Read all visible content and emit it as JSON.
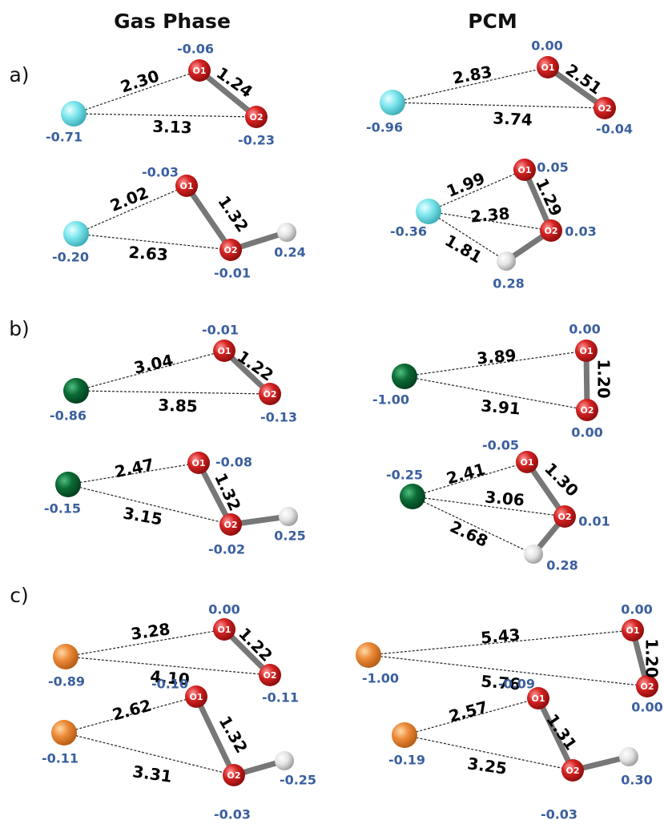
{
  "headers": [
    "Gas Phase",
    "PCM"
  ],
  "panels": [
    {
      "label": "a)",
      "structures": [
        {
          "atoms": [
            {
              "charge": "-0.71"
            },
            {
              "label": "O1",
              "charge": "-0.06"
            },
            {
              "label": "O2",
              "charge": "-0.23"
            }
          ],
          "distances": [
            "2.30",
            "3.13",
            "1.24"
          ]
        },
        {
          "atoms": [
            {
              "charge": "-0.96"
            },
            {
              "label": "O1",
              "charge": "0.00"
            },
            {
              "label": "O2",
              "charge": "-0.04"
            }
          ],
          "distances": [
            "2.83",
            "3.74",
            "2.51"
          ]
        },
        {
          "atoms": [
            {
              "charge": "-0.20"
            },
            {
              "label": "O1",
              "charge": "-0.03"
            },
            {
              "label": "O2",
              "charge": "-0.01"
            },
            {
              "charge": "0.24"
            }
          ],
          "distances": [
            "2.02",
            "2.63",
            "1.32"
          ]
        },
        {
          "atoms": [
            {
              "charge": "-0.36"
            },
            {
              "label": "O1",
              "charge": "0.05"
            },
            {
              "label": "O2",
              "charge": "0.03"
            },
            {
              "charge": "0.28"
            }
          ],
          "distances": [
            "1.99",
            "2.38",
            "1.81",
            "1.29"
          ]
        }
      ]
    },
    {
      "label": "b)",
      "structures": [
        {
          "atoms": [
            {
              "charge": "-0.86"
            },
            {
              "label": "O1",
              "charge": "-0.01"
            },
            {
              "label": "O2",
              "charge": "-0.13"
            }
          ],
          "distances": [
            "3.04",
            "3.85",
            "1.22"
          ]
        },
        {
          "atoms": [
            {
              "charge": "-1.00"
            },
            {
              "label": "O1",
              "charge": "0.00"
            },
            {
              "label": "O2",
              "charge": "0.00"
            }
          ],
          "distances": [
            "3.89",
            "3.91",
            "1.20"
          ]
        },
        {
          "atoms": [
            {
              "charge": "-0.15"
            },
            {
              "label": "O1",
              "charge": "-0.08"
            },
            {
              "label": "O2",
              "charge": "-0.02"
            },
            {
              "charge": "0.25"
            }
          ],
          "distances": [
            "2.47",
            "3.15",
            "1.32"
          ]
        },
        {
          "atoms": [
            {
              "charge": "-0.25"
            },
            {
              "label": "O1",
              "charge": "-0.05"
            },
            {
              "label": "O2",
              "charge": "0.01"
            },
            {
              "charge": "0.28"
            }
          ],
          "distances": [
            "2.41",
            "3.06",
            "2.68",
            "1.30"
          ]
        }
      ]
    },
    {
      "label": "c)",
      "structures": [
        {
          "atoms": [
            {
              "charge": "-0.89"
            },
            {
              "label": "O1",
              "charge": "0.00"
            },
            {
              "label": "O2",
              "charge": "-0.11"
            }
          ],
          "distances": [
            "3.28",
            "4.10",
            "1.22"
          ]
        },
        {
          "atoms": [
            {
              "charge": "-1.00"
            },
            {
              "label": "O1",
              "charge": "0.00"
            },
            {
              "label": "O2",
              "charge": "0.00"
            }
          ],
          "distances": [
            "5.43",
            "5.76",
            "1.20"
          ]
        },
        {
          "atoms": [
            {
              "charge": "-0.11"
            },
            {
              "label": "O1",
              "charge": "-0.10"
            },
            {
              "label": "O2",
              "charge": "-0.03"
            },
            {
              "charge": "-0.25"
            }
          ],
          "distances": [
            "2.62",
            "3.31",
            "1.32"
          ]
        },
        {
          "atoms": [
            {
              "charge": "-0.19"
            },
            {
              "label": "O1",
              "charge": "-0.09"
            },
            {
              "label": "O2",
              "charge": "-0.03"
            },
            {
              "charge": "0.30"
            }
          ],
          "distances": [
            "2.57",
            "3.25",
            "1.31"
          ]
        }
      ]
    }
  ]
}
